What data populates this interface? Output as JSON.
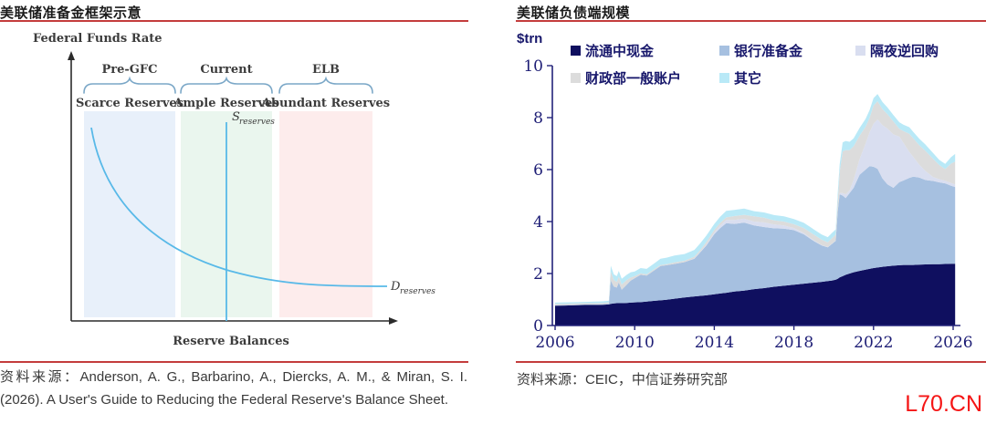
{
  "left_panel": {
    "title": "美联储准备金框架示意",
    "y_axis_label": "Federal Funds Rate",
    "x_axis_label": "Reserve Balances",
    "regimes": [
      {
        "era": "Pre-GFC",
        "regime": "Scarce Reserves",
        "color": "#e8f0fa"
      },
      {
        "era": "Current",
        "regime": "Ample Reserves",
        "color": "#eaf6ee"
      },
      {
        "era": "ELB",
        "regime": "Abundant Reserves",
        "color": "#fdecec"
      }
    ],
    "supply_label_main": "S",
    "supply_label_sub": "reserves",
    "demand_label_main": "D",
    "demand_label_sub": "reserves",
    "curve_color": "#58b9e8",
    "brace_color": "#7aa7c7",
    "source": "资料来源：Anderson, A. G., Barbarino, A., Diercks, A. M., & Miran, S. I. (2026). A User's Guide to Reducing the Federal Reserve's Balance Sheet."
  },
  "right_panel": {
    "title": "美联储负债端规模",
    "unit": "$trn",
    "source": "资料来源：CEIC，中信证券研究部"
  },
  "watermark": {
    "text": "L70.CN",
    "color": "#f51515"
  },
  "chart_data": [
    {
      "type": "area",
      "stacked": true,
      "title": "美联储负债端规模",
      "ylabel": "$trn",
      "ylim": [
        0,
        10
      ],
      "xlim": [
        2006,
        2026.2
      ],
      "grid": false,
      "legend_position": "top",
      "axis_color": "#23237a",
      "tick_label_color": "#1d1d75",
      "y_ticks": [
        0,
        2,
        4,
        6,
        8,
        10
      ],
      "x_ticks": [
        2006,
        2010,
        2014,
        2018,
        2022,
        2026
      ],
      "x": [
        2006.0,
        2006.5,
        2007.0,
        2007.5,
        2008.0,
        2008.4,
        2008.7,
        2008.8,
        2008.95,
        2009.1,
        2009.2,
        2009.35,
        2009.6,
        2009.8,
        2010.0,
        2010.3,
        2010.6,
        2011.0,
        2011.3,
        2011.6,
        2012.0,
        2012.5,
        2013.0,
        2013.3,
        2013.6,
        2014.0,
        2014.3,
        2014.6,
        2015.0,
        2015.5,
        2016.0,
        2016.5,
        2017.0,
        2017.5,
        2018.0,
        2018.5,
        2019.0,
        2019.4,
        2019.7,
        2019.9,
        2020.1,
        2020.2,
        2020.3,
        2020.45,
        2020.6,
        2020.8,
        2021.0,
        2021.3,
        2021.6,
        2021.8,
        2022.0,
        2022.2,
        2022.45,
        2022.7,
        2023.0,
        2023.3,
        2023.5,
        2023.8,
        2024.0,
        2024.3,
        2024.6,
        2025.0,
        2025.3,
        2025.6,
        2025.9,
        2026.1
      ],
      "series": [
        {
          "name": "流通中现金",
          "color": "#0f0f5f",
          "values": [
            0.76,
            0.77,
            0.78,
            0.79,
            0.79,
            0.8,
            0.81,
            0.83,
            0.85,
            0.86,
            0.86,
            0.86,
            0.87,
            0.88,
            0.89,
            0.9,
            0.92,
            0.95,
            0.97,
            0.99,
            1.03,
            1.08,
            1.12,
            1.14,
            1.16,
            1.2,
            1.23,
            1.26,
            1.31,
            1.34,
            1.4,
            1.44,
            1.49,
            1.53,
            1.57,
            1.61,
            1.65,
            1.68,
            1.71,
            1.73,
            1.76,
            1.8,
            1.85,
            1.9,
            1.95,
            2.0,
            2.05,
            2.1,
            2.15,
            2.18,
            2.21,
            2.23,
            2.26,
            2.28,
            2.3,
            2.32,
            2.33,
            2.33,
            2.33,
            2.34,
            2.35,
            2.36,
            2.36,
            2.37,
            2.38,
            2.38
          ]
        },
        {
          "name": "银行准备金",
          "color": "#a6c0e0",
          "values": [
            0.02,
            0.02,
            0.02,
            0.02,
            0.02,
            0.02,
            0.03,
            0.9,
            0.65,
            0.6,
            0.8,
            0.52,
            0.7,
            0.85,
            0.93,
            1.05,
            1.0,
            1.18,
            1.32,
            1.33,
            1.34,
            1.36,
            1.45,
            1.68,
            1.92,
            2.32,
            2.52,
            2.68,
            2.6,
            2.62,
            2.45,
            2.35,
            2.25,
            2.2,
            2.1,
            1.9,
            1.6,
            1.4,
            1.3,
            1.4,
            1.5,
            2.6,
            3.2,
            3.1,
            2.95,
            3.1,
            3.25,
            3.7,
            3.85,
            3.95,
            3.9,
            3.8,
            3.4,
            3.15,
            3.0,
            3.2,
            3.25,
            3.35,
            3.4,
            3.35,
            3.25,
            3.2,
            3.15,
            3.1,
            3.0,
            2.95
          ]
        },
        {
          "name": "隔夜逆回购",
          "color": "#d9def0",
          "values": [
            0,
            0,
            0,
            0,
            0,
            0,
            0,
            0,
            0,
            0,
            0,
            0,
            0,
            0,
            0,
            0,
            0,
            0,
            0,
            0,
            0,
            0,
            0.01,
            0.02,
            0.03,
            0.06,
            0.1,
            0.12,
            0.15,
            0.15,
            0.15,
            0.18,
            0.15,
            0.12,
            0.08,
            0.05,
            0.03,
            0.01,
            0.01,
            0.01,
            0.01,
            0.01,
            0.05,
            0.1,
            0.15,
            0.1,
            0.3,
            0.6,
            1.0,
            1.3,
            1.65,
            1.9,
            2.05,
            2.15,
            2.05,
            1.75,
            1.45,
            1.0,
            0.75,
            0.5,
            0.35,
            0.15,
            0.12,
            0.1,
            0.1,
            0.1
          ]
        },
        {
          "name": "财政部一般账户",
          "color": "#dcdcdc",
          "values": [
            0.05,
            0.05,
            0.05,
            0.05,
            0.05,
            0.05,
            0.05,
            0.35,
            0.25,
            0.22,
            0.22,
            0.2,
            0.18,
            0.12,
            0.08,
            0.06,
            0.05,
            0.05,
            0.04,
            0.04,
            0.06,
            0.05,
            0.07,
            0.07,
            0.1,
            0.1,
            0.1,
            0.1,
            0.15,
            0.15,
            0.2,
            0.18,
            0.16,
            0.15,
            0.15,
            0.19,
            0.22,
            0.21,
            0.18,
            0.21,
            0.23,
            0.4,
            0.8,
            1.6,
            1.7,
            1.55,
            1.3,
            0.9,
            0.65,
            0.55,
            0.7,
            0.7,
            0.62,
            0.55,
            0.5,
            0.3,
            0.45,
            0.7,
            0.72,
            0.75,
            0.78,
            0.7,
            0.55,
            0.45,
            0.75,
            0.88
          ]
        },
        {
          "name": "其它",
          "color": "#b9e9f7",
          "values": [
            0.05,
            0.05,
            0.05,
            0.05,
            0.06,
            0.06,
            0.06,
            0.22,
            0.22,
            0.22,
            0.22,
            0.22,
            0.2,
            0.2,
            0.18,
            0.2,
            0.21,
            0.22,
            0.24,
            0.25,
            0.26,
            0.26,
            0.26,
            0.26,
            0.25,
            0.23,
            0.24,
            0.25,
            0.24,
            0.24,
            0.2,
            0.2,
            0.2,
            0.2,
            0.2,
            0.2,
            0.2,
            0.2,
            0.2,
            0.2,
            0.2,
            0.29,
            0.3,
            0.35,
            0.35,
            0.32,
            0.3,
            0.3,
            0.3,
            0.3,
            0.29,
            0.28,
            0.27,
            0.26,
            0.25,
            0.25,
            0.25,
            0.25,
            0.25,
            0.25,
            0.24,
            0.22,
            0.2,
            0.2,
            0.25,
            0.29
          ]
        }
      ]
    },
    {
      "type": "line",
      "title": "美联储准备金框架示意",
      "xlabel": "Reserve Balances",
      "ylabel": "Federal Funds Rate",
      "annotations": [
        "Pre-GFC / Scarce Reserves",
        "Current / Ample Reserves",
        "ELB / Abundant Reserves",
        "S_reserves vertical supply line in Ample region",
        "D_reserves downward-sloping demand curve flattening at right"
      ]
    }
  ]
}
